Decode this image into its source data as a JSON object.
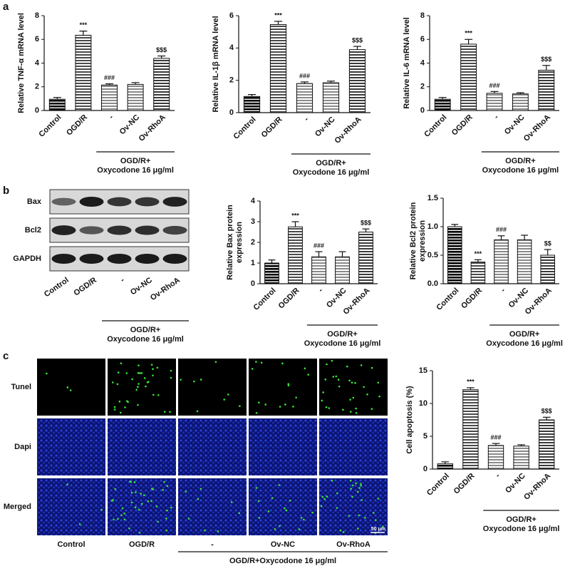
{
  "panel_labels": [
    "a",
    "b",
    "c"
  ],
  "chart_data": [
    {
      "type": "bar",
      "ylabel": "Relative TNF-α mRNA level",
      "categories": [
        "Control",
        "OGD/R",
        "-",
        "Ov-NC",
        "Ov-RhoA"
      ],
      "values": [
        0.95,
        6.35,
        2.15,
        2.2,
        4.4
      ],
      "errors": [
        0.15,
        0.35,
        0.1,
        0.15,
        0.2
      ],
      "annotations": [
        null,
        "***",
        "###",
        null,
        "$$$"
      ],
      "colors": [
        "#000000",
        "#4a4a4a",
        "#8a8a8a",
        "#8a8a8a",
        "#3a3a3a"
      ],
      "ylim": [
        0,
        8
      ],
      "yticks": [
        0,
        2,
        4,
        6,
        8
      ],
      "group_label": [
        "OGD/R+",
        "Oxycodone 16 μg/ml"
      ]
    },
    {
      "type": "bar",
      "ylabel": "Relative IL-1β mRNA level",
      "categories": [
        "Control",
        "OGD/R",
        "-",
        "Ov-NC",
        "Ov-RhoA"
      ],
      "values": [
        1.0,
        5.45,
        1.8,
        1.85,
        3.9
      ],
      "errors": [
        0.12,
        0.2,
        0.1,
        0.1,
        0.2
      ],
      "annotations": [
        null,
        "***",
        "###",
        null,
        "$$$"
      ],
      "colors": [
        "#000000",
        "#4a4a4a",
        "#8a8a8a",
        "#8a8a8a",
        "#3a3a3a"
      ],
      "ylim": [
        0,
        6
      ],
      "yticks": [
        0,
        2,
        4,
        6
      ],
      "group_label": [
        "OGD/R+",
        "Oxycodone 16 μg/ml"
      ]
    },
    {
      "type": "bar",
      "ylabel": "Relative IL-6 mRNA level",
      "categories": [
        "Control",
        "OGD/R",
        "-",
        "Ov-NC",
        "Ov-RhoA"
      ],
      "values": [
        0.95,
        5.6,
        1.45,
        1.4,
        3.4
      ],
      "errors": [
        0.15,
        0.4,
        0.15,
        0.1,
        0.4
      ],
      "annotations": [
        null,
        "***",
        "###",
        null,
        "$$$"
      ],
      "colors": [
        "#000000",
        "#4a4a4a",
        "#8a8a8a",
        "#8a8a8a",
        "#3a3a3a"
      ],
      "ylim": [
        0,
        8
      ],
      "yticks": [
        0,
        2,
        4,
        6,
        8
      ],
      "group_label": [
        "OGD/R+",
        "Oxycodone 16 μg/ml"
      ]
    },
    {
      "type": "bar",
      "ylabel": [
        "Relative Bax protein",
        "expression"
      ],
      "categories": [
        "Control",
        "OGD/R",
        "-",
        "Ov-NC",
        "Ov-RhoA"
      ],
      "values": [
        1.0,
        2.75,
        1.3,
        1.3,
        2.5
      ],
      "errors": [
        0.15,
        0.25,
        0.25,
        0.25,
        0.15
      ],
      "annotations": [
        null,
        "***",
        "###",
        null,
        "$$$"
      ],
      "colors": [
        "#000000",
        "#4a4a4a",
        "#8a8a8a",
        "#8a8a8a",
        "#3a3a3a"
      ],
      "ylim": [
        0,
        4
      ],
      "yticks": [
        0,
        1,
        2,
        3,
        4
      ],
      "group_label": [
        "OGD/R+",
        "Oxycodone 16 μg/ml"
      ]
    },
    {
      "type": "bar",
      "ylabel": [
        "Relative Bcl2 protein",
        "expression"
      ],
      "categories": [
        "Control",
        "OGD/R",
        "-",
        "Ov-NC",
        "Ov-RhoA"
      ],
      "values": [
        1.0,
        0.38,
        0.77,
        0.77,
        0.5
      ],
      "errors": [
        0.04,
        0.04,
        0.07,
        0.08,
        0.1
      ],
      "annotations": [
        null,
        "***",
        "###",
        null,
        "$$"
      ],
      "colors": [
        "#000000",
        "#4a4a4a",
        "#8a8a8a",
        "#8a8a8a",
        "#3a3a3a"
      ],
      "ylim": [
        0,
        1.5
      ],
      "yticks": [
        {
          "value": 0,
          "label": "0.0"
        },
        0.5,
        {
          "value": 1,
          "label": "1.0"
        },
        1.5
      ],
      "group_label": [
        "OGD/R+",
        "Oxycodone 16 μg/ml"
      ]
    },
    {
      "type": "bar",
      "ylabel": "Cell apoptosis (%)",
      "categories": [
        "Control",
        "OGD/R",
        "-",
        "Ov-NC",
        "Ov-RhoA"
      ],
      "values": [
        0.8,
        12.1,
        3.6,
        3.5,
        7.5
      ],
      "errors": [
        0.3,
        0.3,
        0.3,
        0.2,
        0.4
      ],
      "annotations": [
        null,
        "***",
        "###",
        null,
        "$$$"
      ],
      "colors": [
        "#000000",
        "#4a4a4a",
        "#8a8a8a",
        "#8a8a8a",
        "#3a3a3a"
      ],
      "ylim": [
        0,
        15
      ],
      "yticks": [
        0,
        5,
        10,
        15
      ],
      "group_label": [
        "OGD/R+",
        "Oxycodone 16 μg/ml"
      ]
    }
  ],
  "blot": {
    "rows": [
      "Bax",
      "Bcl2",
      "GAPDH"
    ],
    "columns": [
      "Control",
      "OGD/R",
      "-",
      "Ov-NC",
      "Ov-RhoA"
    ],
    "group_label": [
      "OGD/R+",
      "Oxycodone 16 μg/ml"
    ]
  },
  "microscopy": {
    "rows": [
      "Tunel",
      "Dapi",
      "Merged"
    ],
    "columns": [
      "Control",
      "OGD/R",
      "-",
      "Ov-NC",
      "Ov-RhoA"
    ],
    "group_label": "OGD/R+Oxycodone 16 μg/ml",
    "scale_bar": "50 μm"
  }
}
